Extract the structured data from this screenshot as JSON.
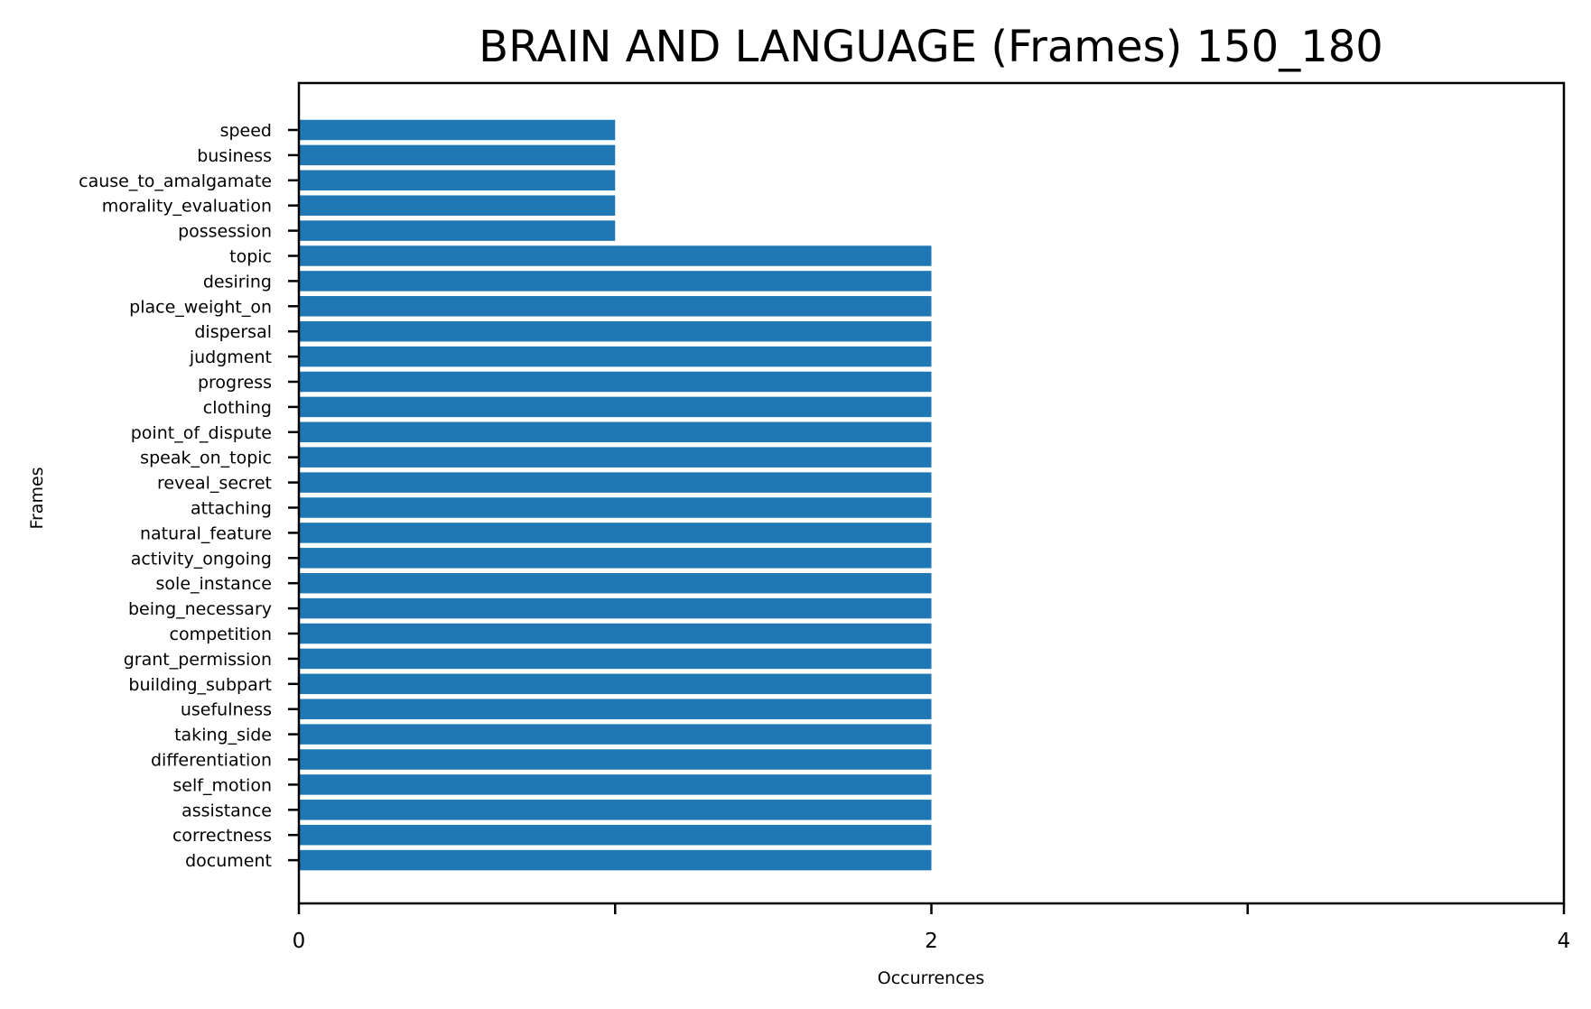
{
  "chart_data": {
    "type": "bar",
    "orientation": "horizontal",
    "title": "BRAIN AND LANGUAGE (Frames) 150_180",
    "xlabel": "Occurrences",
    "ylabel": "Frames",
    "xlim": [
      0,
      4
    ],
    "x_ticks": [
      0,
      1,
      2,
      3,
      4
    ],
    "x_tick_labels": [
      "0",
      "",
      "2",
      "",
      "4"
    ],
    "grid": false,
    "bar_color": "#1f77b4",
    "categories": [
      "speed",
      "business",
      "cause_to_amalgamate",
      "morality_evaluation",
      "possession",
      "topic",
      "desiring",
      "place_weight_on",
      "dispersal",
      "judgment",
      "progress",
      "clothing",
      "point_of_dispute",
      "speak_on_topic",
      "reveal_secret",
      "attaching",
      "natural_feature",
      "activity_ongoing",
      "sole_instance",
      "being_necessary",
      "competition",
      "grant_permission",
      "building_subpart",
      "usefulness",
      "taking_side",
      "differentiation",
      "self_motion",
      "assistance",
      "correctness",
      "document"
    ],
    "values": [
      1,
      1,
      1,
      1,
      1,
      2,
      2,
      2,
      2,
      2,
      2,
      2,
      2,
      2,
      2,
      2,
      2,
      2,
      2,
      2,
      2,
      2,
      2,
      2,
      2,
      2,
      2,
      2,
      2,
      2
    ]
  }
}
